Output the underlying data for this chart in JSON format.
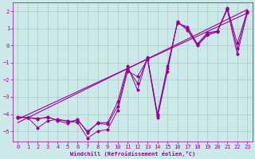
{
  "title": "",
  "xlabel": "Windchill (Refroidissement éolien,°C)",
  "bg_color": "#cde8e8",
  "line_color": "#990099",
  "grid_color": "#aacccc",
  "xlim": [
    -0.5,
    23.5
  ],
  "ylim": [
    -5.6,
    2.5
  ],
  "yticks": [
    2,
    1,
    0,
    -1,
    -2,
    -3,
    -4,
    -5
  ],
  "xticks": [
    0,
    1,
    2,
    3,
    4,
    5,
    6,
    7,
    8,
    9,
    10,
    11,
    12,
    13,
    14,
    15,
    16,
    17,
    18,
    19,
    20,
    21,
    22,
    23
  ],
  "series": [
    {
      "x": [
        0,
        1,
        2,
        3,
        4,
        5,
        6,
        7,
        8,
        9,
        10,
        11,
        12,
        13,
        14,
        15,
        16,
        17,
        18,
        19,
        20,
        21,
        22,
        23
      ],
      "y": [
        -4.2,
        -4.2,
        -4.3,
        -4.15,
        -4.4,
        -4.55,
        -4.3,
        -5.1,
        -4.5,
        -4.5,
        -3.3,
        -1.2,
        -2.6,
        -0.7,
        -4.0,
        -1.2,
        1.3,
        1.1,
        0.1,
        0.75,
        0.85,
        2.2,
        0.15,
        2.0
      ]
    },
    {
      "x": [
        0,
        1,
        2,
        3,
        4,
        5,
        6,
        7,
        8,
        9,
        10,
        11,
        12,
        13,
        14,
        15,
        16,
        17,
        18,
        19,
        20,
        21,
        22,
        23
      ],
      "y": [
        -4.2,
        -4.2,
        -4.8,
        -4.4,
        -4.3,
        -4.4,
        -4.5,
        -5.4,
        -5.0,
        -4.9,
        -3.8,
        -1.5,
        -1.8,
        -0.8,
        -4.2,
        -1.5,
        1.4,
        0.9,
        0.0,
        0.6,
        0.8,
        2.1,
        -0.5,
        1.9
      ]
    },
    {
      "x": [
        0,
        1,
        2,
        3,
        4,
        5,
        6,
        7,
        8,
        9,
        10,
        11,
        12,
        13,
        14,
        15,
        16,
        17,
        18,
        19,
        20,
        21,
        22,
        23
      ],
      "y": [
        -4.15,
        -4.2,
        -4.25,
        -4.2,
        -4.35,
        -4.42,
        -4.38,
        -5.0,
        -4.55,
        -4.6,
        -3.55,
        -1.35,
        -2.2,
        -0.75,
        -4.1,
        -1.35,
        1.35,
        1.0,
        0.05,
        0.68,
        0.83,
        2.15,
        -0.18,
        1.95
      ]
    },
    {
      "x": [
        0,
        23
      ],
      "y": [
        -4.3,
        1.9
      ]
    },
    {
      "x": [
        0,
        23
      ],
      "y": [
        -4.5,
        2.1
      ]
    }
  ]
}
